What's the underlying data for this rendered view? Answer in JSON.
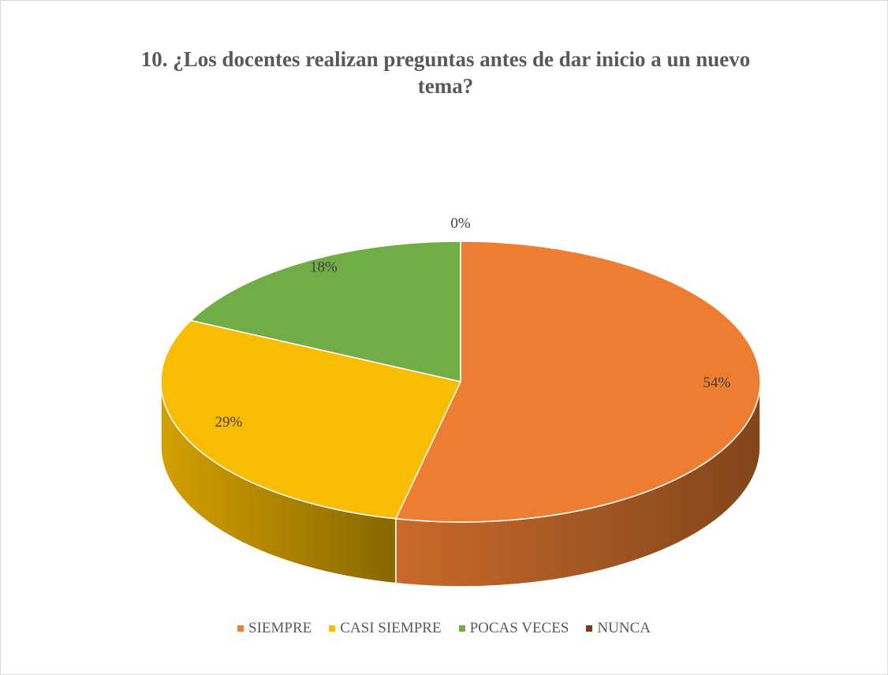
{
  "chart_data": {
    "type": "pie",
    "title": "10. ¿Los docentes realizan preguntas antes de dar inicio a un nuevo tema?",
    "categories": [
      "SIEMPRE",
      "CASI SIEMPRE",
      "POCAS VECES",
      "NUNCA"
    ],
    "values": [
      54,
      29,
      18,
      0
    ],
    "value_labels": [
      "54%",
      "29%",
      "18%",
      "0%"
    ],
    "colors": [
      "#ed7d31",
      "#f8bc00",
      "#70ad47",
      "#7b3a10"
    ],
    "legend": "bottom"
  }
}
